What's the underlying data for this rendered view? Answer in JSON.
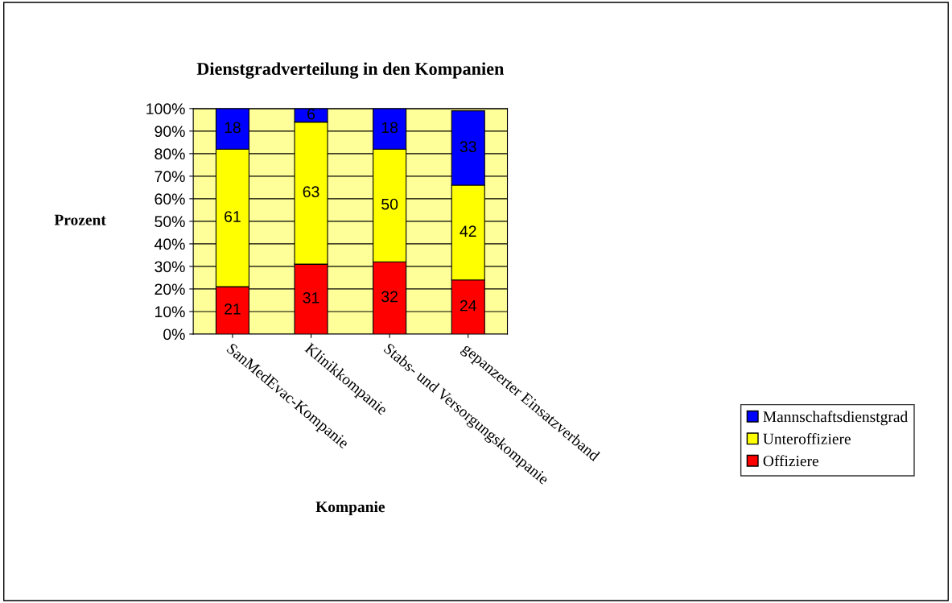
{
  "chart_data": {
    "type": "bar",
    "stacked": true,
    "title": "Dienstgradverteilung in den Kompanien",
    "xlabel": "Kompanie",
    "ylabel": "Prozent",
    "categories": [
      "SanMedEvac-Kompanie",
      "Klinikkompanie",
      "Stabs- und Versorgungskompanie",
      "gepanzerter Einsatzverband"
    ],
    "series": [
      {
        "name": "Offiziere",
        "color": "#ff0000",
        "values": [
          21,
          31,
          32,
          24
        ]
      },
      {
        "name": "Unteroffiziere",
        "color": "#ffff00",
        "values": [
          61,
          63,
          50,
          42
        ]
      },
      {
        "name": "Mannschaftsdienstgrad",
        "color": "#0000ff",
        "values": [
          18,
          6,
          18,
          33
        ]
      }
    ],
    "ylim": [
      0,
      100
    ],
    "yticks": [
      {
        "value": 0,
        "label": "0%"
      },
      {
        "value": 10,
        "label": "10%"
      },
      {
        "value": 20,
        "label": "20%"
      },
      {
        "value": 30,
        "label": "30%"
      },
      {
        "value": 40,
        "label": "40%"
      },
      {
        "value": 50,
        "label": "50%"
      },
      {
        "value": 60,
        "label": "60%"
      },
      {
        "value": 70,
        "label": "70%"
      },
      {
        "value": 80,
        "label": "80%"
      },
      {
        "value": 90,
        "label": "90%"
      },
      {
        "value": 100,
        "label": "100%"
      }
    ],
    "grid": "y",
    "legend": "right",
    "data_labels": true
  }
}
